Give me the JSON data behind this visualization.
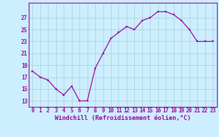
{
  "x": [
    0,
    1,
    2,
    3,
    4,
    5,
    6,
    7,
    8,
    9,
    10,
    11,
    12,
    13,
    14,
    15,
    16,
    17,
    18,
    19,
    20,
    21,
    22,
    23
  ],
  "y": [
    18,
    17,
    16.5,
    15,
    14,
    15.5,
    13,
    13,
    18.5,
    21,
    23.5,
    24.5,
    25.5,
    25,
    26.5,
    27,
    28,
    28,
    27.5,
    26.5,
    25,
    23,
    23,
    23
  ],
  "line_color": "#990099",
  "marker_color": "#990099",
  "bg_color": "#cceeff",
  "plot_bg_color": "#cceeff",
  "grid_color": "#aacccc",
  "xlabel": "Windchill (Refroidissement éolien,°C)",
  "yticks": [
    13,
    15,
    17,
    19,
    21,
    23,
    25,
    27
  ],
  "xtick_labels": [
    "0",
    "1",
    "2",
    "3",
    "4",
    "5",
    "6",
    "7",
    "8",
    "9",
    "10",
    "11",
    "12",
    "13",
    "14",
    "15",
    "16",
    "17",
    "18",
    "19",
    "20",
    "21",
    "22",
    "23"
  ],
  "ylim": [
    12.0,
    29.5
  ],
  "xlim": [
    -0.5,
    23.5
  ],
  "tick_fontsize": 5.5,
  "xlabel_fontsize": 6.5
}
